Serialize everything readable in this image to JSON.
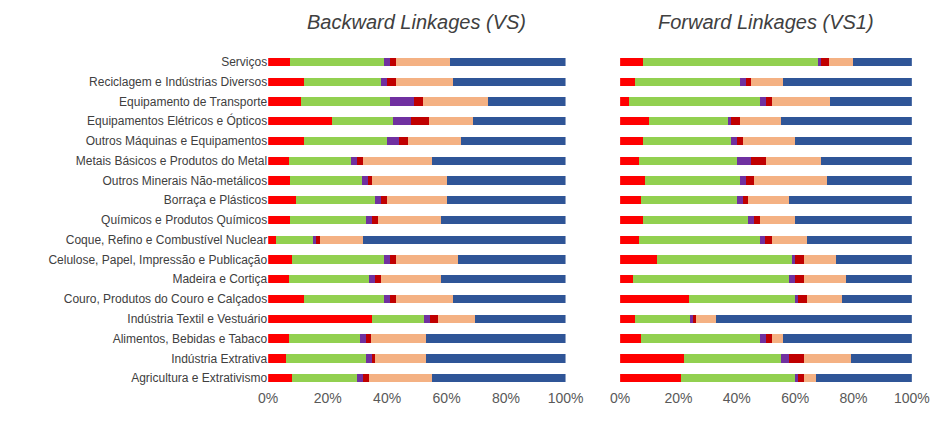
{
  "chart_data": [
    {
      "type": "bar",
      "title": "Backward Linkages (VS)",
      "orientation": "horizontal",
      "stacked": true,
      "grid": false,
      "tick_labels": true,
      "categories": [
        "Serviços",
        "Reciclagem e Indústrias Diversos",
        "Equipamento de Transporte",
        "Equipamentos Elétricos e Ópticos",
        "Outros Máquinas e Equipamentos",
        "Metais Básicos e Produtos do Metal",
        "Outros Minerais Não-metálicos",
        "Borraça e Plásticos",
        "Químicos e Produtos Químicos",
        "Coque, Refino e Combustível Nuclear",
        "Celulose, Papel, Impressão e Publicação",
        "Madeira e Cortiça",
        "Couro, Produtos do Couro e Calçados",
        "Indústria Textil e Vestuário",
        "Alimentos, Bebidas e Tabaco",
        "Indústria Extrativa",
        "Agricultura e Extrativismo"
      ],
      "series": [
        {
          "color": "#ff0000",
          "values": [
            7.5,
            12,
            11,
            21.5,
            12,
            7,
            7.5,
            9.5,
            7.5,
            2.5,
            8,
            7,
            12,
            35,
            7,
            6,
            8
          ]
        },
        {
          "color": "#92d050",
          "values": [
            31.5,
            26,
            30,
            20.5,
            28,
            21,
            24,
            26.5,
            25.5,
            12.5,
            31,
            27,
            27,
            17.5,
            24,
            27,
            22
          ]
        },
        {
          "color": "#7030a0",
          "values": [
            2,
            2,
            8,
            6,
            4,
            2,
            2,
            2,
            2,
            1,
            2,
            2,
            2,
            2,
            2,
            2,
            2
          ]
        },
        {
          "color": "#c00000",
          "values": [
            2,
            3,
            3,
            6,
            3,
            2,
            1.5,
            2,
            2,
            1.5,
            2,
            2,
            2,
            2.5,
            1.5,
            1,
            2
          ]
        },
        {
          "color": "#f4b183",
          "values": [
            18,
            19,
            22,
            15,
            18,
            23,
            25,
            20,
            21,
            14.5,
            21,
            20,
            19,
            12.5,
            18.5,
            17,
            21
          ]
        },
        {
          "color": "#2f5597",
          "values": [
            39,
            38,
            26,
            31,
            35,
            45,
            40,
            40,
            42,
            68,
            36,
            42,
            38,
            30.5,
            47,
            47,
            45
          ]
        }
      ],
      "xlim": [
        0,
        100
      ],
      "xticks": [
        {
          "value": 0,
          "label": "0%"
        },
        {
          "value": 20,
          "label": "20%"
        },
        {
          "value": 40,
          "label": "40%"
        },
        {
          "value": 60,
          "label": "60%"
        },
        {
          "value": 80,
          "label": "80%"
        },
        {
          "value": 100,
          "label": "100%"
        }
      ]
    },
    {
      "type": "bar",
      "title": "Forward Linkages (VS1)",
      "orientation": "horizontal",
      "stacked": true,
      "grid": false,
      "tick_labels": "x",
      "categories": [
        "Serviços",
        "Reciclagem e Indústrias Diversos",
        "Equipamento de Transporte",
        "Equipamentos Elétricos e Ópticos",
        "Outros Máquinas e Equipamentos",
        "Metais Básicos e Produtos do Metal",
        "Outros Minerais Não-metálicos",
        "Borraça e Plásticos",
        "Químicos e Produtos Químicos",
        "Coque, Refino e Combustível Nuclear",
        "Celulose, Papel, Impressão e Publicação",
        "Madeira e Cortiça",
        "Couro, Produtos do Couro e Calçados",
        "Indústria Textil e Vestuário",
        "Alimentos, Bebidas e Tabaco",
        "Indústria Extrativa",
        "Agricultura e Extrativismo"
      ],
      "series": [
        {
          "color": "#ff0000",
          "values": [
            8,
            5,
            3,
            10,
            8,
            6.5,
            8.5,
            7,
            8,
            6.5,
            12.5,
            4.5,
            23.5,
            5,
            7,
            22,
            21
          ]
        },
        {
          "color": "#92d050",
          "values": [
            60,
            36,
            45,
            27,
            30,
            33.5,
            32.5,
            33,
            36,
            41.5,
            46.5,
            53.5,
            36.5,
            19,
            41,
            33,
            39
          ]
        },
        {
          "color": "#7030a0",
          "values": [
            1,
            2,
            2,
            1,
            2,
            5,
            2,
            2,
            2,
            1.5,
            1,
            2,
            1,
            1,
            2,
            3,
            1
          ]
        },
        {
          "color": "#c00000",
          "values": [
            2.5,
            2,
            2,
            3,
            2,
            5,
            3,
            2,
            2,
            2.5,
            3,
            3,
            3,
            1,
            2,
            5,
            2
          ]
        },
        {
          "color": "#f4b183",
          "values": [
            8.5,
            11,
            20,
            14,
            18,
            19,
            25,
            14,
            12,
            12,
            11,
            14.5,
            12,
            7,
            4,
            16,
            4
          ]
        },
        {
          "color": "#2f5597",
          "values": [
            20,
            44,
            28,
            45,
            40,
            31,
            29,
            42,
            40,
            36,
            26,
            22.5,
            24,
            67,
            44,
            21,
            33
          ]
        }
      ],
      "xlim": [
        0,
        100
      ],
      "xticks": [
        {
          "value": 0,
          "label": "0%"
        },
        {
          "value": 20,
          "label": "20%"
        },
        {
          "value": 40,
          "label": "40%"
        },
        {
          "value": 60,
          "label": "60%"
        },
        {
          "value": 80,
          "label": "80%"
        },
        {
          "value": 100,
          "label": "100%"
        }
      ]
    }
  ]
}
